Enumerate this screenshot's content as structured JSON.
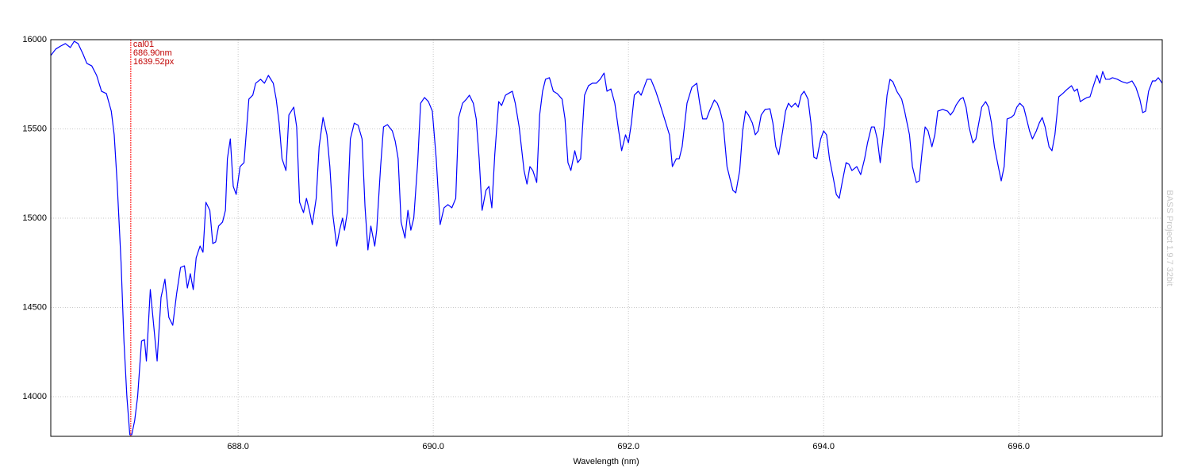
{
  "chart_data": {
    "type": "line",
    "xlabel": "Wavelength (nm)",
    "watermark": "BASS Project 1.9.7 32bit",
    "color": "#0000ff",
    "grid": true,
    "xlim": [
      686.08,
      697.47
    ],
    "ylim": [
      13778,
      16000
    ],
    "xticks": [
      {
        "value": 688,
        "label": "688.0"
      },
      {
        "value": 690,
        "label": "690.0"
      },
      {
        "value": 692,
        "label": "692.0"
      },
      {
        "value": 694,
        "label": "694.0"
      },
      {
        "value": 696,
        "label": "696.0"
      }
    ],
    "yticks": [
      14000,
      14500,
      15000,
      15500,
      16000
    ],
    "cursor": {
      "label": "cal01",
      "x": 686.9,
      "wavelength_label": "686.90nm",
      "pixel_label": "1639.52px",
      "color": "#ff0000"
    },
    "x": [
      686.08,
      686.13,
      686.18,
      686.23,
      686.28,
      686.32,
      686.36,
      686.41,
      686.45,
      686.5,
      686.55,
      686.6,
      686.65,
      686.7,
      686.73,
      686.76,
      686.8,
      686.83,
      686.86,
      686.89,
      686.91,
      686.94,
      686.97,
      687.01,
      687.04,
      687.06,
      687.1,
      687.15,
      687.17,
      687.21,
      687.25,
      687.29,
      687.33,
      687.37,
      687.41,
      687.45,
      687.48,
      687.51,
      687.54,
      687.57,
      687.61,
      687.64,
      687.67,
      687.71,
      687.74,
      687.77,
      687.8,
      687.84,
      687.87,
      687.89,
      687.92,
      687.95,
      687.98,
      688.02,
      688.06,
      688.11,
      688.15,
      688.18,
      688.23,
      688.27,
      688.31,
      688.36,
      688.39,
      688.42,
      688.45,
      688.49,
      688.52,
      688.57,
      688.6,
      688.63,
      688.67,
      688.7,
      688.73,
      688.76,
      688.8,
      688.83,
      688.87,
      688.91,
      688.94,
      688.97,
      689.01,
      689.04,
      689.07,
      689.09,
      689.12,
      689.15,
      689.19,
      689.23,
      689.27,
      689.3,
      689.33,
      689.36,
      689.4,
      689.42,
      689.46,
      689.49,
      689.53,
      689.58,
      689.61,
      689.64,
      689.67,
      689.71,
      689.74,
      689.77,
      689.8,
      689.84,
      689.87,
      689.91,
      689.95,
      689.99,
      690.03,
      690.07,
      690.11,
      690.15,
      690.19,
      690.23,
      690.26,
      690.3,
      690.34,
      690.37,
      690.41,
      690.44,
      690.47,
      690.5,
      690.54,
      690.57,
      690.6,
      690.63,
      690.67,
      690.7,
      690.74,
      690.78,
      690.81,
      690.84,
      690.88,
      690.93,
      690.96,
      690.99,
      691.02,
      691.06,
      691.09,
      691.12,
      691.15,
      691.19,
      691.23,
      691.27,
      691.32,
      691.35,
      691.38,
      691.41,
      691.45,
      691.48,
      691.51,
      691.55,
      691.59,
      691.63,
      691.67,
      691.71,
      691.75,
      691.78,
      691.82,
      691.86,
      691.9,
      691.93,
      691.97,
      692.0,
      692.03,
      692.06,
      692.1,
      692.13,
      692.16,
      692.19,
      692.23,
      692.28,
      692.32,
      692.37,
      692.42,
      692.45,
      692.49,
      692.52,
      692.55,
      692.6,
      692.65,
      692.7,
      692.73,
      692.76,
      692.8,
      692.83,
      692.88,
      692.91,
      692.94,
      692.97,
      693.01,
      693.04,
      693.07,
      693.1,
      693.14,
      693.17,
      693.2,
      693.23,
      693.27,
      693.3,
      693.33,
      693.36,
      693.4,
      693.45,
      693.48,
      693.51,
      693.54,
      693.58,
      693.61,
      693.64,
      693.67,
      693.71,
      693.74,
      693.77,
      693.8,
      693.84,
      693.87,
      693.9,
      693.93,
      693.97,
      694.0,
      694.03,
      694.06,
      694.1,
      694.13,
      694.16,
      694.19,
      694.23,
      694.26,
      694.29,
      694.34,
      694.38,
      694.42,
      694.45,
      694.49,
      694.52,
      694.55,
      694.58,
      694.62,
      694.65,
      694.68,
      694.71,
      694.75,
      694.8,
      694.83,
      694.88,
      694.91,
      694.95,
      694.98,
      695.01,
      695.04,
      695.07,
      695.11,
      695.14,
      695.17,
      695.22,
      695.27,
      695.3,
      695.33,
      695.36,
      695.4,
      695.43,
      695.46,
      695.49,
      695.53,
      695.56,
      695.59,
      695.62,
      695.66,
      695.69,
      695.72,
      695.75,
      695.79,
      695.82,
      695.85,
      695.88,
      695.92,
      695.95,
      695.98,
      696.01,
      696.05,
      696.08,
      696.11,
      696.14,
      696.18,
      696.21,
      696.24,
      696.27,
      696.31,
      696.34,
      696.37,
      696.41,
      696.45,
      696.5,
      696.54,
      696.57,
      696.6,
      696.63,
      696.67,
      696.7,
      696.73,
      696.76,
      696.8,
      696.83,
      696.86,
      696.89,
      696.93,
      696.96,
      697.01,
      697.06,
      697.11,
      697.16,
      697.2,
      697.24,
      697.27,
      697.3,
      697.33,
      697.37,
      697.4,
      697.43,
      697.47
    ],
    "values": [
      15911,
      15947,
      15964,
      15978,
      15956,
      15991,
      15978,
      15920,
      15867,
      15853,
      15800,
      15711,
      15698,
      15600,
      15467,
      15200,
      14756,
      14311,
      14000,
      13787,
      13787,
      13867,
      14000,
      14311,
      14320,
      14200,
      14600,
      14311,
      14200,
      14556,
      14658,
      14444,
      14400,
      14578,
      14724,
      14733,
      14609,
      14689,
      14600,
      14778,
      14844,
      14809,
      15089,
      15044,
      14858,
      14867,
      14956,
      14978,
      15044,
      15333,
      15444,
      15178,
      15133,
      15289,
      15311,
      15667,
      15689,
      15756,
      15778,
      15756,
      15800,
      15756,
      15667,
      15533,
      15333,
      15267,
      15578,
      15622,
      15511,
      15089,
      15031,
      15111,
      15044,
      14964,
      15111,
      15400,
      15564,
      15467,
      15289,
      15022,
      14844,
      14933,
      15000,
      14933,
      15036,
      15444,
      15533,
      15520,
      15444,
      15067,
      14822,
      14956,
      14844,
      14933,
      15289,
      15511,
      15524,
      15489,
      15431,
      15333,
      14978,
      14889,
      15044,
      14933,
      15000,
      15311,
      15644,
      15676,
      15653,
      15600,
      15333,
      14964,
      15058,
      15076,
      15058,
      15111,
      15564,
      15644,
      15667,
      15689,
      15644,
      15556,
      15333,
      15044,
      15156,
      15178,
      15058,
      15356,
      15653,
      15631,
      15689,
      15702,
      15711,
      15644,
      15511,
      15267,
      15191,
      15289,
      15267,
      15200,
      15578,
      15711,
      15778,
      15787,
      15711,
      15698,
      15667,
      15556,
      15311,
      15267,
      15378,
      15311,
      15333,
      15689,
      15742,
      15756,
      15756,
      15778,
      15813,
      15711,
      15724,
      15644,
      15489,
      15378,
      15467,
      15422,
      15533,
      15689,
      15711,
      15689,
      15733,
      15778,
      15778,
      15711,
      15644,
      15556,
      15467,
      15289,
      15333,
      15333,
      15400,
      15644,
      15733,
      15756,
      15644,
      15556,
      15556,
      15600,
      15662,
      15644,
      15600,
      15533,
      15289,
      15222,
      15156,
      15142,
      15267,
      15489,
      15600,
      15578,
      15533,
      15467,
      15489,
      15578,
      15609,
      15613,
      15533,
      15400,
      15356,
      15489,
      15600,
      15644,
      15622,
      15644,
      15622,
      15689,
      15711,
      15667,
      15533,
      15342,
      15333,
      15444,
      15489,
      15467,
      15333,
      15222,
      15133,
      15111,
      15200,
      15311,
      15302,
      15267,
      15289,
      15244,
      15333,
      15422,
      15511,
      15511,
      15444,
      15311,
      15511,
      15689,
      15778,
      15764,
      15711,
      15667,
      15600,
      15467,
      15289,
      15200,
      15209,
      15378,
      15511,
      15489,
      15400,
      15467,
      15600,
      15609,
      15600,
      15578,
      15600,
      15636,
      15667,
      15676,
      15622,
      15511,
      15422,
      15444,
      15533,
      15622,
      15653,
      15622,
      15533,
      15400,
      15289,
      15209,
      15289,
      15556,
      15564,
      15578,
      15622,
      15644,
      15622,
      15556,
      15489,
      15444,
      15489,
      15533,
      15564,
      15511,
      15400,
      15378,
      15467,
      15680,
      15698,
      15724,
      15742,
      15711,
      15724,
      15653,
      15667,
      15676,
      15680,
      15733,
      15800,
      15756,
      15822,
      15778,
      15778,
      15787,
      15778,
      15764,
      15756,
      15769,
      15733,
      15667,
      15591,
      15600,
      15711,
      15769,
      15769,
      15787,
      15756
    ]
  }
}
